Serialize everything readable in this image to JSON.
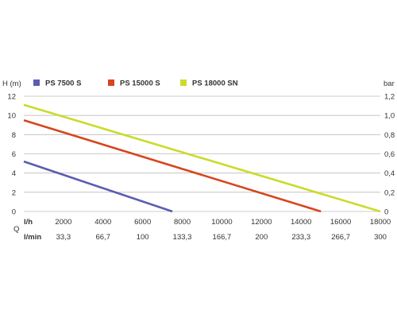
{
  "chart_data": {
    "type": "line",
    "ylabel_left": "H (m)",
    "ylabel_right": "bar",
    "xlabel": "Q",
    "x_row_label": "l/h",
    "x2_row_label": "l/min",
    "x_ticks": [
      "2000",
      "4000",
      "6000",
      "8000",
      "10000",
      "12000",
      "14000",
      "16000",
      "18000"
    ],
    "x2_ticks": [
      "33,3",
      "66,7",
      "100",
      "133,3",
      "166,7",
      "200",
      "233,3",
      "266,7",
      "300"
    ],
    "y_ticks": [
      "0",
      "2",
      "4",
      "6",
      "8",
      "10",
      "12"
    ],
    "y_right_ticks": [
      "0",
      "0,2",
      "0,4",
      "0,6",
      "0,8",
      "1,0",
      "1,2"
    ],
    "xlim": [
      0,
      18000
    ],
    "ylim": [
      0,
      12
    ],
    "grid": "horizontal",
    "legend_position": "top",
    "series": [
      {
        "name": "PS 7500 S",
        "color": "#5a5db3",
        "x": [
          0,
          7500
        ],
        "y": [
          5.2,
          0
        ]
      },
      {
        "name": "PS 15000 S",
        "color": "#d7461d",
        "x": [
          0,
          15000
        ],
        "y": [
          9.5,
          0
        ]
      },
      {
        "name": "PS 18000 SN",
        "color": "#c9dc2c",
        "x": [
          0,
          18000
        ],
        "y": [
          11.1,
          0
        ]
      }
    ]
  }
}
